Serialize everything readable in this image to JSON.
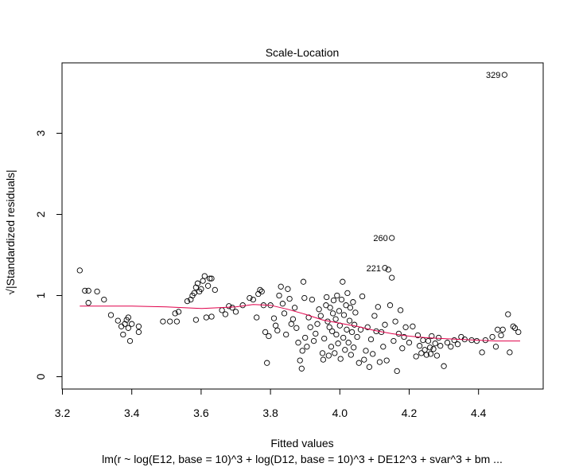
{
  "chart_data": {
    "type": "scatter",
    "title": "Scale-Location",
    "xlabel": "Fitted values",
    "ylabel": "√|Standardized residuals|",
    "subtitle": "lm(r ~ log(E12, base = 10)^3 + log(D12, base = 10)^3 + DE12^3 + svar^3 + bm ...",
    "xlim": [
      3.2,
      4.52
    ],
    "ylim": [
      0,
      3.8
    ],
    "xticks": [
      "3.2",
      "3.4",
      "3.6",
      "3.8",
      "4.0",
      "4.2",
      "4.4"
    ],
    "yticks": [
      "0",
      "1",
      "2",
      "3"
    ],
    "grid": false,
    "colors": {
      "points": "#000000",
      "smooth": "#e0004a",
      "frame": "#000000"
    },
    "labeled_points": [
      {
        "label": "329",
        "x": 4.475,
        "y": 3.72
      },
      {
        "label": "260",
        "x": 4.15,
        "y": 1.71
      },
      {
        "label": "221",
        "x": 4.13,
        "y": 1.34
      }
    ],
    "smooth_line": {
      "x": [
        3.25,
        3.3,
        3.4,
        3.5,
        3.6,
        3.7,
        3.75,
        3.8,
        3.85,
        3.9,
        3.95,
        4.0,
        4.05,
        4.1,
        4.15,
        4.2,
        4.25,
        4.3,
        4.35,
        4.4,
        4.45,
        4.52
      ],
      "y": [
        0.87,
        0.87,
        0.87,
        0.86,
        0.84,
        0.86,
        0.89,
        0.88,
        0.83,
        0.77,
        0.7,
        0.66,
        0.62,
        0.57,
        0.53,
        0.5,
        0.48,
        0.47,
        0.46,
        0.45,
        0.44,
        0.44
      ]
    },
    "points": [
      [
        3.25,
        1.31
      ],
      [
        3.265,
        1.06
      ],
      [
        3.275,
        1.06
      ],
      [
        3.275,
        0.91
      ],
      [
        3.3,
        1.05
      ],
      [
        3.32,
        0.95
      ],
      [
        3.34,
        0.76
      ],
      [
        3.36,
        0.69
      ],
      [
        3.37,
        0.62
      ],
      [
        3.375,
        0.52
      ],
      [
        3.38,
        0.65
      ],
      [
        3.385,
        0.7
      ],
      [
        3.39,
        0.6
      ],
      [
        3.39,
        0.73
      ],
      [
        3.395,
        0.44
      ],
      [
        3.4,
        0.65
      ],
      [
        3.42,
        0.62
      ],
      [
        3.42,
        0.55
      ],
      [
        3.49,
        0.68
      ],
      [
        3.51,
        0.68
      ],
      [
        3.525,
        0.78
      ],
      [
        3.53,
        0.68
      ],
      [
        3.535,
        0.8
      ],
      [
        3.56,
        0.93
      ],
      [
        3.57,
        0.95
      ],
      [
        3.575,
        1.0
      ],
      [
        3.58,
        1.03
      ],
      [
        3.585,
        1.1
      ],
      [
        3.59,
        1.15
      ],
      [
        3.595,
        1.05
      ],
      [
        3.6,
        1.08
      ],
      [
        3.605,
        1.18
      ],
      [
        3.61,
        1.24
      ],
      [
        3.615,
        0.73
      ],
      [
        3.62,
        1.12
      ],
      [
        3.625,
        1.21
      ],
      [
        3.63,
        1.21
      ],
      [
        3.63,
        0.74
      ],
      [
        3.585,
        0.7
      ],
      [
        3.64,
        1.07
      ],
      [
        3.66,
        0.82
      ],
      [
        3.67,
        0.77
      ],
      [
        3.68,
        0.87
      ],
      [
        3.69,
        0.85
      ],
      [
        3.7,
        0.8
      ],
      [
        3.72,
        0.88
      ],
      [
        3.74,
        0.97
      ],
      [
        3.75,
        0.95
      ],
      [
        3.76,
        0.73
      ],
      [
        3.765,
        1.02
      ],
      [
        3.77,
        1.07
      ],
      [
        3.775,
        1.05
      ],
      [
        3.78,
        0.88
      ],
      [
        3.785,
        0.55
      ],
      [
        3.79,
        0.17
      ],
      [
        3.795,
        0.5
      ],
      [
        3.8,
        0.88
      ],
      [
        3.81,
        0.72
      ],
      [
        3.815,
        0.63
      ],
      [
        3.82,
        0.57
      ],
      [
        3.825,
        1.0
      ],
      [
        3.83,
        1.11
      ],
      [
        3.835,
        0.9
      ],
      [
        3.84,
        0.78
      ],
      [
        3.845,
        0.52
      ],
      [
        3.85,
        1.08
      ],
      [
        3.855,
        0.96
      ],
      [
        3.86,
        0.65
      ],
      [
        3.865,
        0.71
      ],
      [
        3.87,
        0.85
      ],
      [
        3.875,
        0.6
      ],
      [
        3.88,
        0.42
      ],
      [
        3.885,
        0.2
      ],
      [
        3.89,
        0.1
      ],
      [
        3.892,
        0.32
      ],
      [
        3.895,
        1.17
      ],
      [
        3.898,
        0.97
      ],
      [
        3.9,
        0.48
      ],
      [
        3.905,
        0.37
      ],
      [
        3.91,
        0.73
      ],
      [
        3.915,
        0.61
      ],
      [
        3.92,
        0.95
      ],
      [
        3.925,
        0.44
      ],
      [
        3.93,
        0.53
      ],
      [
        3.935,
        0.65
      ],
      [
        3.94,
        0.83
      ],
      [
        3.945,
        0.75
      ],
      [
        3.95,
        0.29
      ],
      [
        3.952,
        0.21
      ],
      [
        3.955,
        0.47
      ],
      [
        3.96,
        0.88
      ],
      [
        3.962,
        0.98
      ],
      [
        3.965,
        0.68
      ],
      [
        3.968,
        0.26
      ],
      [
        3.97,
        0.61
      ],
      [
        3.972,
        0.85
      ],
      [
        3.975,
        0.37
      ],
      [
        3.978,
        0.56
      ],
      [
        3.98,
        0.78
      ],
      [
        3.982,
        0.94
      ],
      [
        3.985,
        0.29
      ],
      [
        3.988,
        0.71
      ],
      [
        3.99,
        0.52
      ],
      [
        3.992,
        1.0
      ],
      [
        3.995,
        0.41
      ],
      [
        3.998,
        0.81
      ],
      [
        4.0,
        0.63
      ],
      [
        4.002,
        0.22
      ],
      [
        4.005,
        0.95
      ],
      [
        4.008,
        1.17
      ],
      [
        4.01,
        0.48
      ],
      [
        4.012,
        0.76
      ],
      [
        4.015,
        0.33
      ],
      [
        4.018,
        0.88
      ],
      [
        4.02,
        0.58
      ],
      [
        4.022,
        1.03
      ],
      [
        4.025,
        0.42
      ],
      [
        4.028,
        0.69
      ],
      [
        4.03,
        0.85
      ],
      [
        4.032,
        0.27
      ],
      [
        4.035,
        0.55
      ],
      [
        4.038,
        0.92
      ],
      [
        4.04,
        0.36
      ],
      [
        4.042,
        0.64
      ],
      [
        4.045,
        0.79
      ],
      [
        4.05,
        0.49
      ],
      [
        4.055,
        0.17
      ],
      [
        4.06,
        0.58
      ],
      [
        4.065,
        0.99
      ],
      [
        4.07,
        0.21
      ],
      [
        4.075,
        0.32
      ],
      [
        4.08,
        0.61
      ],
      [
        4.085,
        0.12
      ],
      [
        4.09,
        0.46
      ],
      [
        4.095,
        0.28
      ],
      [
        4.1,
        0.75
      ],
      [
        4.105,
        0.56
      ],
      [
        4.11,
        0.86
      ],
      [
        4.115,
        0.18
      ],
      [
        4.12,
        0.55
      ],
      [
        4.125,
        0.37
      ],
      [
        4.13,
        0.64
      ],
      [
        4.135,
        0.2
      ],
      [
        4.14,
        1.32
      ],
      [
        4.145,
        0.88
      ],
      [
        4.15,
        1.22
      ],
      [
        4.155,
        0.44
      ],
      [
        4.16,
        0.68
      ],
      [
        4.165,
        0.07
      ],
      [
        4.17,
        0.53
      ],
      [
        4.175,
        0.82
      ],
      [
        4.18,
        0.35
      ],
      [
        4.185,
        0.49
      ],
      [
        4.19,
        0.61
      ],
      [
        4.2,
        0.42
      ],
      [
        4.21,
        0.62
      ],
      [
        4.22,
        0.25
      ],
      [
        4.225,
        0.51
      ],
      [
        4.23,
        0.38
      ],
      [
        4.235,
        0.29
      ],
      [
        4.24,
        0.45
      ],
      [
        4.245,
        0.33
      ],
      [
        4.25,
        0.27
      ],
      [
        4.255,
        0.44
      ],
      [
        4.26,
        0.36
      ],
      [
        4.262,
        0.28
      ],
      [
        4.265,
        0.5
      ],
      [
        4.27,
        0.34
      ],
      [
        4.275,
        0.41
      ],
      [
        4.28,
        0.26
      ],
      [
        4.285,
        0.48
      ],
      [
        4.29,
        0.38
      ],
      [
        4.3,
        0.13
      ],
      [
        4.31,
        0.42
      ],
      [
        4.32,
        0.37
      ],
      [
        4.33,
        0.45
      ],
      [
        4.34,
        0.4
      ],
      [
        4.35,
        0.49
      ],
      [
        4.36,
        0.46
      ],
      [
        4.38,
        0.45
      ],
      [
        4.395,
        0.44
      ],
      [
        4.41,
        0.3
      ],
      [
        4.42,
        0.45
      ],
      [
        4.44,
        0.49
      ],
      [
        4.45,
        0.37
      ],
      [
        4.455,
        0.58
      ],
      [
        4.465,
        0.51
      ],
      [
        4.47,
        0.58
      ],
      [
        4.485,
        0.77
      ],
      [
        4.49,
        0.3
      ],
      [
        4.5,
        0.62
      ],
      [
        4.505,
        0.6
      ],
      [
        4.515,
        0.55
      ],
      [
        4.13,
        1.34
      ],
      [
        4.15,
        1.71
      ],
      [
        4.475,
        3.72
      ]
    ]
  }
}
